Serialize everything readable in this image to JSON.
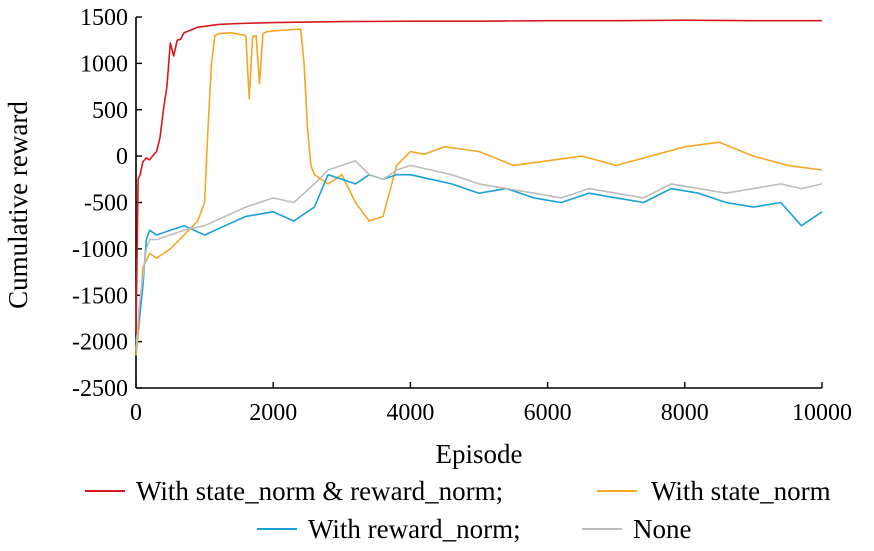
{
  "chart_data": {
    "type": "line",
    "title": "",
    "xlabel": "Episode",
    "ylabel": "Cumulative reward",
    "xlim": [
      0,
      10000
    ],
    "ylim": [
      -2500,
      1500
    ],
    "xticks": [
      0,
      2000,
      4000,
      6000,
      8000,
      10000
    ],
    "xtick_labels": [
      "0",
      "2000",
      "4000",
      "6000",
      "8000",
      "10000"
    ],
    "yticks": [
      1500,
      1000,
      500,
      0,
      -500,
      -1000,
      -1500,
      -2000,
      -2500
    ],
    "ytick_labels": [
      "1500",
      "1000",
      "500",
      "0",
      "-500",
      "-1000",
      "-1500",
      "-2000",
      "-2500"
    ],
    "grid": false,
    "legend_position": "bottom",
    "series": [
      {
        "name": "With state_norm & reward_norm;",
        "color": "#d7191c",
        "x": [
          0,
          30,
          60,
          100,
          150,
          200,
          250,
          300,
          350,
          400,
          450,
          500,
          550,
          600,
          650,
          700,
          800,
          900,
          1000,
          1200,
          1500,
          2000,
          2500,
          3000,
          4000,
          5000,
          6000,
          7000,
          8000,
          9000,
          10000
        ],
        "y": [
          -1900,
          -250,
          -200,
          -60,
          -20,
          -40,
          10,
          50,
          200,
          500,
          750,
          1220,
          1080,
          1250,
          1260,
          1330,
          1360,
          1390,
          1400,
          1420,
          1430,
          1440,
          1445,
          1450,
          1455,
          1455,
          1460,
          1460,
          1465,
          1460,
          1460
        ]
      },
      {
        "name": "With state_norm",
        "color": "#f5a623",
        "x": [
          0,
          50,
          100,
          200,
          300,
          500,
          700,
          900,
          1000,
          1050,
          1100,
          1150,
          1200,
          1400,
          1600,
          1650,
          1700,
          1750,
          1800,
          1850,
          1900,
          2000,
          2200,
          2400,
          2450,
          2500,
          2550,
          2600,
          2800,
          3000,
          3200,
          3400,
          3600,
          3800,
          4000,
          4200,
          4500,
          5000,
          5500,
          6000,
          6500,
          7000,
          7500,
          8000,
          8500,
          9000,
          9500,
          10000
        ],
        "y": [
          -2150,
          -1800,
          -1200,
          -1050,
          -1100,
          -1000,
          -850,
          -700,
          -500,
          300,
          1000,
          1300,
          1320,
          1330,
          1300,
          620,
          1290,
          1300,
          780,
          1320,
          1340,
          1350,
          1360,
          1370,
          1000,
          300,
          -100,
          -200,
          -300,
          -200,
          -500,
          -700,
          -650,
          -100,
          50,
          20,
          100,
          50,
          -100,
          -50,
          0,
          -100,
          0,
          100,
          150,
          0,
          -100,
          -150
        ]
      },
      {
        "name": "With reward_norm;",
        "color": "#1aa0db",
        "x": [
          0,
          50,
          100,
          150,
          200,
          300,
          500,
          700,
          1000,
          1300,
          1600,
          2000,
          2300,
          2600,
          2800,
          3000,
          3200,
          3400,
          3600,
          3800,
          4000,
          4300,
          4600,
          5000,
          5400,
          5800,
          6200,
          6600,
          7000,
          7400,
          7800,
          8200,
          8600,
          9000,
          9400,
          9700,
          10000
        ],
        "y": [
          -2000,
          -1750,
          -1400,
          -900,
          -800,
          -850,
          -800,
          -750,
          -850,
          -750,
          -650,
          -600,
          -700,
          -550,
          -200,
          -250,
          -300,
          -200,
          -250,
          -200,
          -200,
          -250,
          -300,
          -400,
          -350,
          -450,
          -500,
          -400,
          -450,
          -500,
          -350,
          -400,
          -500,
          -550,
          -500,
          -750,
          -600
        ]
      },
      {
        "name": "None",
        "color": "#bdbdbd",
        "x": [
          0,
          50,
          100,
          150,
          200,
          300,
          500,
          700,
          1000,
          1300,
          1600,
          2000,
          2300,
          2600,
          2800,
          3000,
          3200,
          3400,
          3600,
          3800,
          4000,
          4300,
          4600,
          5000,
          5400,
          5800,
          6200,
          6600,
          7000,
          7400,
          7800,
          8200,
          8600,
          9000,
          9400,
          9700,
          10000
        ],
        "y": [
          -2100,
          -1600,
          -1300,
          -1000,
          -900,
          -900,
          -850,
          -800,
          -750,
          -650,
          -550,
          -450,
          -500,
          -300,
          -150,
          -100,
          -50,
          -200,
          -250,
          -150,
          -100,
          -150,
          -200,
          -300,
          -350,
          -400,
          -450,
          -350,
          -400,
          -450,
          -300,
          -350,
          -400,
          -350,
          -300,
          -350,
          -300
        ]
      }
    ]
  }
}
